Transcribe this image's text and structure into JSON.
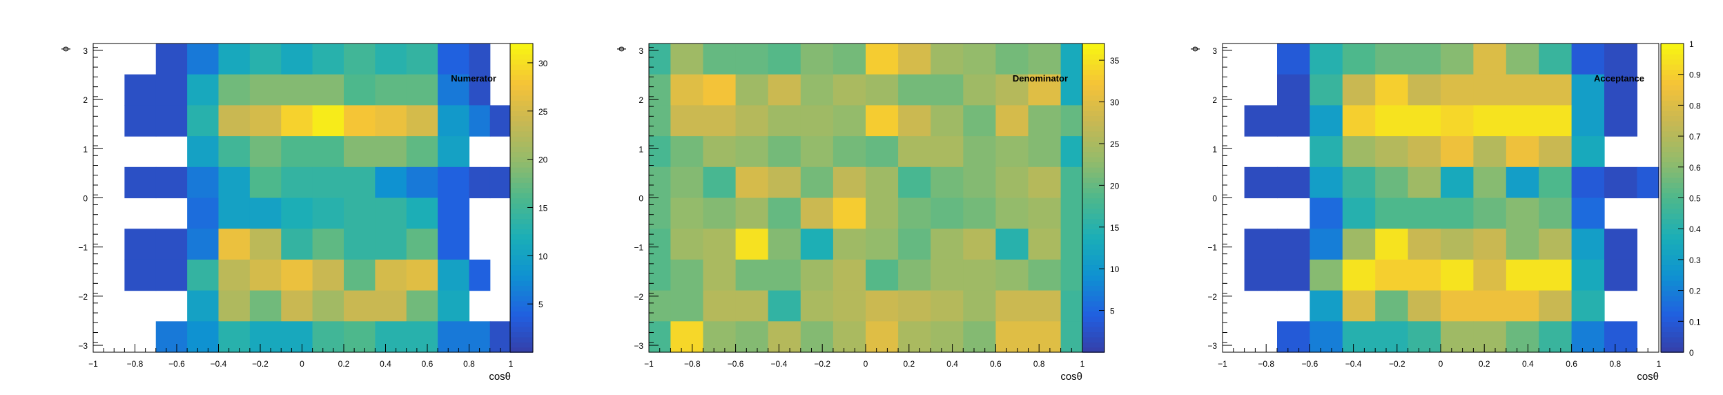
{
  "chart_data": [
    {
      "type": "heatmap",
      "title": "Numerator",
      "xlabel": "cosθ",
      "ylabel": "ϕ",
      "xlim": [
        -1,
        1
      ],
      "ylim": [
        -3.14,
        3.14
      ],
      "x_ticks": [
        "−1",
        "−0.8",
        "−0.6",
        "−0.4",
        "−0.2",
        "0",
        "0.2",
        "0.4",
        "0.6",
        "0.8",
        "1"
      ],
      "y_ticks": [
        "−3",
        "−2",
        "−1",
        "0",
        "1",
        "2",
        "3"
      ],
      "x_edges": [
        -1,
        -0.85,
        -0.7,
        -0.55,
        -0.4,
        -0.25,
        -0.1,
        0.05,
        0.2,
        0.35,
        0.5,
        0.65,
        0.8,
        0.9,
        1
      ],
      "z_ticks": [
        "5",
        "10",
        "15",
        "20",
        "25",
        "30"
      ],
      "zlim": [
        0,
        32
      ],
      "values": [
        [
          null,
          null,
          2,
          6,
          11,
          13,
          11,
          13,
          15,
          13,
          14,
          4,
          2,
          null
        ],
        [
          null,
          2,
          2,
          11,
          18,
          19,
          19,
          19,
          16,
          17,
          17,
          6,
          2,
          null
        ],
        [
          null,
          2,
          2,
          13,
          24,
          25,
          29,
          31,
          28,
          27,
          25,
          9,
          6,
          2
        ],
        [
          null,
          null,
          null,
          10,
          15,
          18,
          16,
          16,
          19,
          19,
          17,
          10,
          null,
          null
        ],
        [
          null,
          2,
          2,
          6,
          10,
          16,
          14,
          14,
          14,
          8,
          6,
          4,
          2,
          2
        ],
        [
          null,
          null,
          null,
          5,
          10,
          10,
          12,
          13,
          14,
          14,
          12,
          4,
          null,
          null
        ],
        [
          null,
          2,
          2,
          6,
          27,
          23,
          14,
          17,
          14,
          14,
          17,
          4,
          null,
          null
        ],
        [
          null,
          2,
          2,
          14,
          23,
          25,
          27,
          24,
          17,
          25,
          26,
          10,
          4,
          null
        ],
        [
          null,
          null,
          null,
          10,
          22,
          18,
          24,
          21,
          24,
          24,
          18,
          11,
          null,
          null
        ],
        [
          null,
          null,
          6,
          8,
          13,
          11,
          11,
          15,
          16,
          13,
          13,
          6,
          6,
          2
        ]
      ]
    },
    {
      "type": "heatmap",
      "title": "Denominator",
      "xlabel": "cosθ",
      "ylabel": "ϕ",
      "xlim": [
        -1,
        1
      ],
      "ylim": [
        -3.14,
        3.14
      ],
      "x_ticks": [
        "−1",
        "−0.8",
        "−0.6",
        "−0.4",
        "−0.2",
        "0",
        "0.2",
        "0.4",
        "0.6",
        "0.8",
        "1"
      ],
      "y_ticks": [
        "−3",
        "−2",
        "−1",
        "0",
        "1",
        "2",
        "3"
      ],
      "x_edges": [
        -1,
        -0.9,
        -0.75,
        -0.6,
        -0.45,
        -0.3,
        -0.15,
        0,
        0.15,
        0.3,
        0.45,
        0.6,
        0.75,
        0.9,
        1
      ],
      "z_ticks": [
        "5",
        "10",
        "15",
        "20",
        "25",
        "30",
        "35"
      ],
      "zlim": [
        0,
        37
      ],
      "values": [
        [
          17,
          24,
          20,
          20,
          19,
          22,
          21,
          33,
          29,
          24,
          23,
          21,
          22,
          13
        ],
        [
          20,
          30,
          32,
          24,
          28,
          23,
          25,
          24,
          21,
          21,
          24,
          26,
          30,
          13
        ],
        [
          20,
          28,
          28,
          26,
          24,
          24,
          23,
          33,
          28,
          24,
          21,
          29,
          22,
          20
        ],
        [
          18,
          21,
          24,
          23,
          21,
          23,
          21,
          20,
          25,
          25,
          22,
          23,
          22,
          14
        ],
        [
          20,
          22,
          18,
          29,
          27,
          21,
          27,
          24,
          18,
          21,
          22,
          24,
          26,
          18
        ],
        [
          20,
          23,
          22,
          24,
          20,
          28,
          33,
          24,
          21,
          20,
          21,
          23,
          24,
          18
        ],
        [
          19,
          24,
          25,
          35,
          22,
          14,
          24,
          23,
          20,
          24,
          26,
          15,
          25,
          18
        ],
        [
          19,
          21,
          25,
          21,
          21,
          24,
          26,
          19,
          22,
          24,
          24,
          23,
          21,
          18
        ],
        [
          21,
          21,
          26,
          26,
          16,
          25,
          26,
          28,
          27,
          26,
          24,
          28,
          28,
          17
        ],
        [
          18,
          34,
          23,
          22,
          26,
          22,
          25,
          30,
          25,
          24,
          22,
          30,
          30,
          17
        ]
      ]
    },
    {
      "type": "heatmap",
      "title": "Acceptance",
      "xlabel": "cosθ",
      "ylabel": "ϕ",
      "xlim": [
        -1,
        1
      ],
      "ylim": [
        -3.14,
        3.14
      ],
      "x_ticks": [
        "−1",
        "−0.8",
        "−0.6",
        "−0.4",
        "−0.2",
        "0",
        "0.2",
        "0.4",
        "0.6",
        "0.8",
        "1"
      ],
      "y_ticks": [
        "−3",
        "−2",
        "−1",
        "0",
        "1",
        "2",
        "3"
      ],
      "x_edges": [
        -1,
        -0.9,
        -0.75,
        -0.6,
        -0.45,
        -0.3,
        -0.15,
        0,
        0.15,
        0.3,
        0.45,
        0.6,
        0.75,
        0.9,
        1
      ],
      "z_ticks": [
        "0",
        "0.1",
        "0.2",
        "0.3",
        "0.4",
        "0.5",
        "0.6",
        "0.7",
        "0.8",
        "0.9",
        "1"
      ],
      "zlim": [
        0,
        1
      ],
      "values": [
        [
          null,
          null,
          0.1,
          0.4,
          0.5,
          0.55,
          0.55,
          0.6,
          0.8,
          0.6,
          0.45,
          0.1,
          0.05,
          null
        ],
        [
          null,
          null,
          0.05,
          0.45,
          0.75,
          0.9,
          0.75,
          0.8,
          0.8,
          0.8,
          0.8,
          0.3,
          0.05,
          null
        ],
        [
          null,
          0.05,
          0.05,
          0.3,
          0.9,
          0.95,
          0.95,
          0.92,
          0.95,
          0.95,
          0.95,
          0.3,
          0.05,
          null
        ],
        [
          null,
          null,
          null,
          0.4,
          0.65,
          0.7,
          0.75,
          0.85,
          0.7,
          0.85,
          0.75,
          0.35,
          null,
          null
        ],
        [
          null,
          0.05,
          0.05,
          0.3,
          0.45,
          0.55,
          0.65,
          0.35,
          0.6,
          0.3,
          0.5,
          0.1,
          0.05,
          0.1
        ],
        [
          null,
          null,
          null,
          0.15,
          0.4,
          0.5,
          0.5,
          0.5,
          0.55,
          0.6,
          0.55,
          0.15,
          null,
          null
        ],
        [
          null,
          0.05,
          0.05,
          0.2,
          0.65,
          0.95,
          0.75,
          0.7,
          0.75,
          0.6,
          0.7,
          0.3,
          0.05,
          null
        ],
        [
          null,
          0.05,
          0.05,
          0.6,
          0.95,
          0.9,
          0.9,
          0.95,
          0.8,
          0.95,
          0.95,
          0.35,
          0.05,
          null
        ],
        [
          null,
          null,
          null,
          0.3,
          0.8,
          0.55,
          0.75,
          0.85,
          0.85,
          0.85,
          0.75,
          0.4,
          null,
          null
        ],
        [
          null,
          null,
          0.1,
          0.2,
          0.4,
          0.4,
          0.45,
          0.65,
          0.65,
          0.55,
          0.45,
          0.2,
          0.1,
          null
        ]
      ]
    }
  ]
}
